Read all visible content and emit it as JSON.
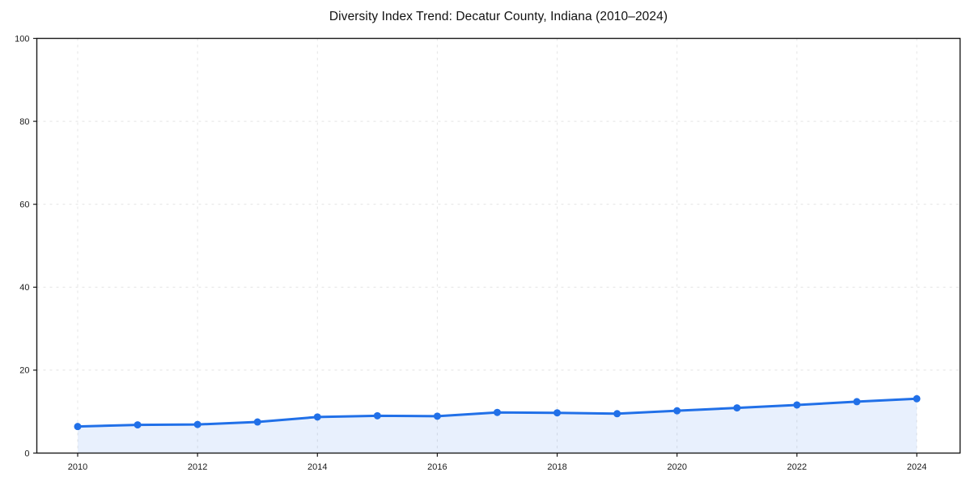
{
  "title": "Diversity Index Trend: Decatur County, Indiana (2010–2024)",
  "colors": {
    "line": "#2170e8",
    "area_alpha": 0.1,
    "grid": "#e4e4e4",
    "spine": "#1a1a1a",
    "tick_text": "#1a1a1a",
    "title_text": "#111111",
    "background": "#ffffff"
  },
  "chart_data": {
    "type": "line",
    "title": "Diversity Index Trend: Decatur County, Indiana (2010–2024)",
    "series_name": "Diversity Index",
    "x": [
      2010,
      2011,
      2012,
      2013,
      2014,
      2015,
      2016,
      2017,
      2018,
      2019,
      2020,
      2021,
      2022,
      2023,
      2024
    ],
    "values": [
      6.4,
      6.8,
      6.9,
      7.5,
      8.7,
      9.0,
      8.9,
      9.8,
      9.7,
      9.5,
      10.2,
      10.9,
      11.6,
      12.4,
      13.1
    ],
    "xlabel": "",
    "ylabel": "",
    "xlim": [
      2009.3,
      2024.7
    ],
    "ylim": [
      0,
      100
    ],
    "x_ticks": [
      2010,
      2012,
      2014,
      2016,
      2018,
      2020,
      2022,
      2024
    ],
    "y_ticks": [
      0,
      20,
      40,
      60,
      80,
      100
    ],
    "grid": true,
    "grid_style": "dashed",
    "legend": false,
    "marker": "circle",
    "area_fill": true
  }
}
